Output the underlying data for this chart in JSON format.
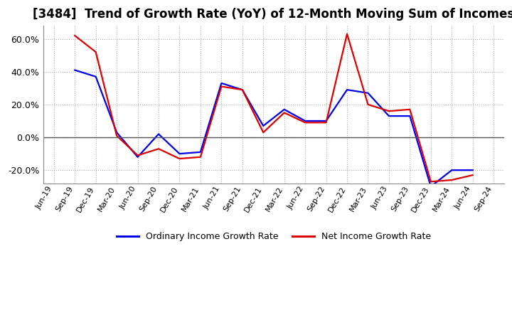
{
  "title": "[3484]  Trend of Growth Rate (YoY) of 12-Month Moving Sum of Incomes",
  "x_labels": [
    "Jun-19",
    "Sep-19",
    "Dec-19",
    "Mar-20",
    "Jun-20",
    "Sep-20",
    "Dec-20",
    "Mar-21",
    "Jun-21",
    "Sep-21",
    "Dec-21",
    "Mar-22",
    "Jun-22",
    "Sep-22",
    "Dec-22",
    "Mar-23",
    "Jun-23",
    "Sep-23",
    "Dec-23",
    "Mar-24",
    "Jun-24",
    "Sep-24"
  ],
  "ordinary_income": [
    null,
    0.41,
    0.37,
    0.03,
    -0.12,
    0.02,
    -0.1,
    -0.09,
    0.33,
    0.29,
    0.07,
    0.17,
    0.1,
    0.1,
    0.29,
    0.27,
    0.13,
    0.13,
    -0.3,
    -0.2,
    -0.2,
    null
  ],
  "net_income": [
    null,
    0.62,
    0.52,
    0.01,
    -0.11,
    -0.07,
    -0.13,
    -0.12,
    0.31,
    0.29,
    0.03,
    0.15,
    0.09,
    0.09,
    0.63,
    0.2,
    0.16,
    0.17,
    -0.27,
    -0.26,
    -0.23,
    null
  ],
  "ylim": [
    -0.28,
    0.68
  ],
  "yticks": [
    -0.2,
    0.0,
    0.2,
    0.4,
    0.6
  ],
  "ordinary_color": "#0000EE",
  "net_color": "#DD0000",
  "background_color": "#FFFFFF",
  "plot_bg_color": "#FFFFFF",
  "grid_color": "#AAAAAA",
  "legend_ordinary": "Ordinary Income Growth Rate",
  "legend_net": "Net Income Growth Rate",
  "title_fontsize": 12,
  "line_width": 1.6
}
